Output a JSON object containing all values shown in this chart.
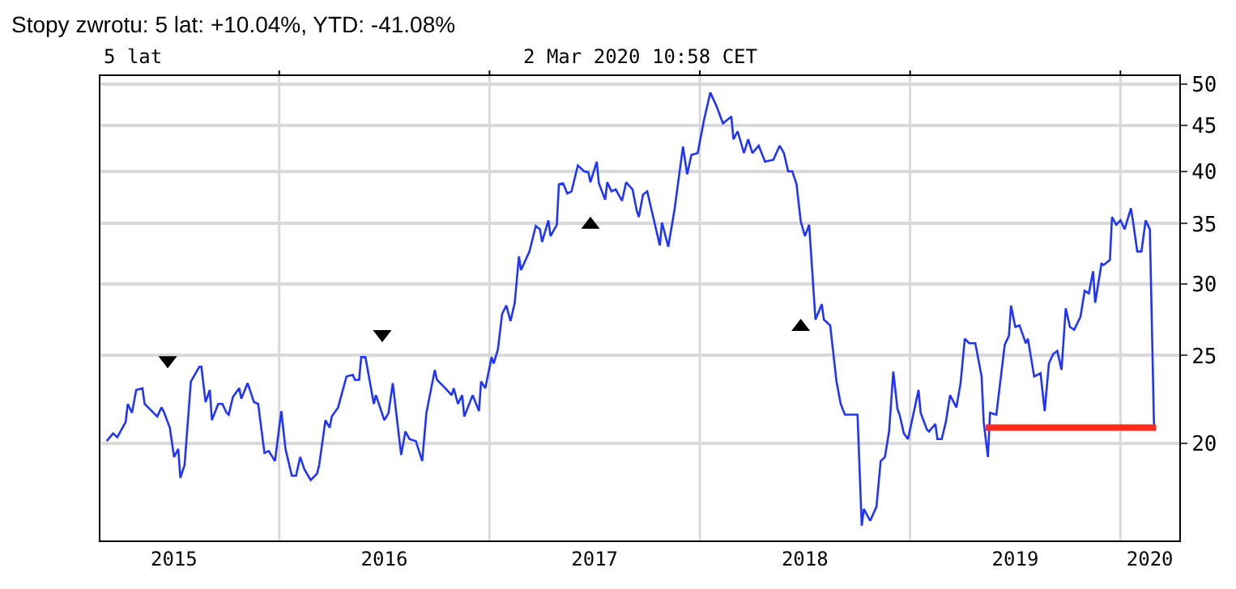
{
  "chart_data": {
    "type": "line",
    "title": "Stopy zwrotu: 5 lat: +10.04%, YTD: -41.08%",
    "subtitle": "2 Mar 2020 10:58 CET",
    "annotations": [
      "5 lat"
    ],
    "log": "y",
    "grid": true,
    "marker": "none",
    "line_style": "solid",
    "xlim": [
      2015.15,
      2020.28
    ],
    "ylim": [
      15.6,
      51
    ],
    "xticks": [
      {
        "value": 2016,
        "label": null
      },
      {
        "value": 2017,
        "label": null
      },
      {
        "value": 2018,
        "label": null
      },
      {
        "value": 2019,
        "label": null
      },
      {
        "value": 2020,
        "label": null
      },
      {
        "value": 2015.5,
        "label": "2015"
      },
      {
        "value": 2016.5,
        "label": "2016"
      },
      {
        "value": 2017.5,
        "label": "2017"
      },
      {
        "value": 2018.5,
        "label": "2018"
      },
      {
        "value": 2019.5,
        "label": "2019"
      },
      {
        "value": 2020.14,
        "label": "2020"
      }
    ],
    "yticks": [
      20,
      25,
      30,
      35,
      40,
      45,
      50
    ],
    "series": [
      {
        "color": "#1f35ff",
        "x": [
          2015.18,
          2015.21,
          2015.23,
          2015.27,
          2015.28,
          2015.3,
          2015.32,
          2015.35,
          2015.36,
          2015.42,
          2015.44,
          2015.45,
          2015.48,
          2015.5,
          2015.52,
          2015.53,
          2015.55,
          2015.58,
          2015.62,
          2015.63,
          2015.65,
          2015.67,
          2015.68,
          2015.71,
          2015.73,
          2015.75,
          2015.76,
          2015.78,
          2015.81,
          2015.82,
          2015.85,
          2015.88,
          2015.9,
          2015.93,
          2015.95,
          2015.98,
          2016.01,
          2016.03,
          2016.06,
          2016.08,
          2016.1,
          2016.12,
          2016.15,
          2016.18,
          2016.19,
          2016.22,
          2016.24,
          2016.25,
          2016.28,
          2016.32,
          2016.35,
          2016.36,
          2016.38,
          2016.39,
          2016.41,
          2016.45,
          2016.46,
          2016.5,
          2016.52,
          2016.54,
          2016.58,
          2016.6,
          2016.62,
          2016.65,
          2016.68,
          2016.7,
          2016.74,
          2016.75,
          2016.79,
          2016.82,
          2016.83,
          2016.85,
          2016.87,
          2016.88,
          2016.92,
          2016.95,
          2016.96,
          2016.98,
          2017.01,
          2017.02,
          2017.04,
          2017.06,
          2017.08,
          2017.1,
          2017.12,
          2017.14,
          2017.15,
          2017.19,
          2017.22,
          2017.24,
          2017.25,
          2017.28,
          2017.29,
          2017.32,
          2017.33,
          2017.35,
          2017.37,
          2017.39,
          2017.42,
          2017.45,
          2017.47,
          2017.48,
          2017.51,
          2017.52,
          2017.55,
          2017.56,
          2017.58,
          2017.6,
          2017.63,
          2017.65,
          2017.68,
          2017.7,
          2017.71,
          2017.73,
          2017.75,
          2017.81,
          2017.82,
          2017.85,
          2017.88,
          2017.92,
          2017.94,
          2017.96,
          2017.99,
          2018.02,
          2018.05,
          2018.08,
          2018.11,
          2018.15,
          2018.16,
          2018.18,
          2018.21,
          2018.23,
          2018.25,
          2018.28,
          2018.31,
          2018.35,
          2018.38,
          2018.4,
          2018.42,
          2018.44,
          2018.46,
          2018.48,
          2018.5,
          2018.52,
          2018.55,
          2018.58,
          2018.59,
          2018.62,
          2018.65,
          2018.67,
          2018.69,
          2018.75,
          2018.77,
          2018.78,
          2018.81,
          2018.84,
          2018.86,
          2018.88,
          2018.9,
          2018.92,
          2018.94,
          2018.95,
          2018.97,
          2018.99,
          2019.04,
          2019.05,
          2019.08,
          2019.09,
          2019.12,
          2019.13,
          2019.15,
          2019.17,
          2019.19,
          2019.22,
          2019.24,
          2019.26,
          2019.28,
          2019.31,
          2019.34,
          2019.35,
          2019.37,
          2019.38,
          2019.41,
          2019.45,
          2019.47,
          2019.48,
          2019.5,
          2019.52,
          2019.55,
          2019.56,
          2019.59,
          2019.62,
          2019.64,
          2019.66,
          2019.68,
          2019.7,
          2019.72,
          2019.74,
          2019.76,
          2019.78,
          2019.81,
          2019.83,
          2019.85,
          2019.87,
          2019.88,
          2019.91,
          2019.92,
          2019.95,
          2019.96,
          2019.98,
          2020.0,
          2020.02,
          2020.05,
          2020.06,
          2020.08,
          2020.1,
          2020.12,
          2020.14,
          2020.16
        ],
        "values": [
          20.1,
          20.5,
          20.3,
          21.1,
          22.1,
          21.6,
          22.9,
          23.0,
          22.1,
          21.4,
          21.9,
          21.7,
          20.8,
          19.3,
          19.7,
          18.3,
          18.9,
          23.4,
          24.3,
          24.3,
          22.2,
          22.9,
          21.2,
          22.1,
          22.1,
          21.6,
          21.5,
          22.5,
          23.0,
          22.4,
          23.3,
          22.2,
          22.1,
          19.5,
          19.6,
          19.1,
          21.7,
          19.7,
          18.4,
          18.4,
          19.3,
          18.7,
          18.2,
          18.5,
          18.9,
          21.2,
          20.8,
          21.4,
          21.9,
          23.7,
          23.8,
          23.5,
          23.5,
          24.9,
          24.9,
          22.1,
          22.6,
          21.2,
          21.6,
          23.3,
          19.4,
          20.6,
          20.2,
          20.1,
          19.1,
          21.6,
          24.1,
          23.5,
          23.0,
          22.6,
          23.0,
          22.1,
          22.6,
          21.4,
          22.6,
          21.7,
          23.4,
          23.0,
          24.9,
          24.5,
          25.4,
          27.8,
          28.4,
          27.3,
          28.6,
          32.2,
          31.1,
          32.6,
          34.8,
          34.5,
          33.4,
          35.3,
          33.9,
          34.9,
          38.7,
          38.8,
          37.8,
          38.0,
          40.6,
          40.0,
          39.9,
          38.9,
          41.0,
          38.8,
          37.2,
          38.9,
          38.0,
          38.2,
          37.1,
          38.9,
          38.2,
          36.2,
          35.6,
          37.7,
          38.0,
          33.1,
          35.1,
          33.0,
          36.3,
          42.6,
          39.7,
          41.7,
          41.9,
          45.6,
          48.9,
          47.2,
          45.2,
          46.0,
          43.4,
          44.3,
          41.9,
          43.4,
          41.9,
          42.7,
          41.0,
          41.2,
          42.7,
          41.9,
          40.0,
          40.0,
          38.7,
          35.2,
          33.9,
          34.9,
          27.4,
          28.5,
          27.4,
          27.0,
          23.4,
          22.1,
          21.5,
          21.5,
          16.2,
          16.9,
          16.4,
          17.0,
          19.1,
          19.3,
          20.6,
          24.0,
          21.8,
          21.5,
          20.5,
          20.2,
          22.9,
          21.6,
          20.7,
          20.6,
          21.0,
          20.2,
          20.2,
          21.1,
          22.6,
          21.9,
          23.3,
          26.1,
          25.8,
          25.8,
          23.7,
          21.1,
          19.3,
          21.6,
          21.5,
          25.7,
          26.3,
          28.4,
          26.9,
          27.0,
          25.8,
          26.1,
          23.7,
          23.9,
          21.7,
          24.5,
          25.1,
          25.3,
          24.1,
          28.2,
          26.9,
          26.7,
          27.6,
          29.5,
          29.3,
          31.0,
          28.6,
          31.6,
          31.5,
          31.9,
          35.6,
          34.9,
          35.3,
          34.5,
          36.4,
          35.2,
          32.6,
          32.6,
          35.3,
          34.5,
          20.8
        ]
      },
      {
        "type": "line",
        "color": "#ff2a1a",
        "x": [
          2019.36,
          2020.17
        ],
        "values": [
          20.8,
          20.8
        ]
      },
      {
        "type": "scatter",
        "color": "#000000",
        "marker": "triangle_down",
        "x": [
          2015.47,
          2016.49
        ],
        "values": [
          24.7,
          26.4
        ]
      },
      {
        "type": "scatter",
        "color": "#000000",
        "marker": "triangle",
        "x": [
          2017.48,
          2018.48
        ],
        "values": [
          34.9,
          26.9
        ]
      }
    ]
  }
}
